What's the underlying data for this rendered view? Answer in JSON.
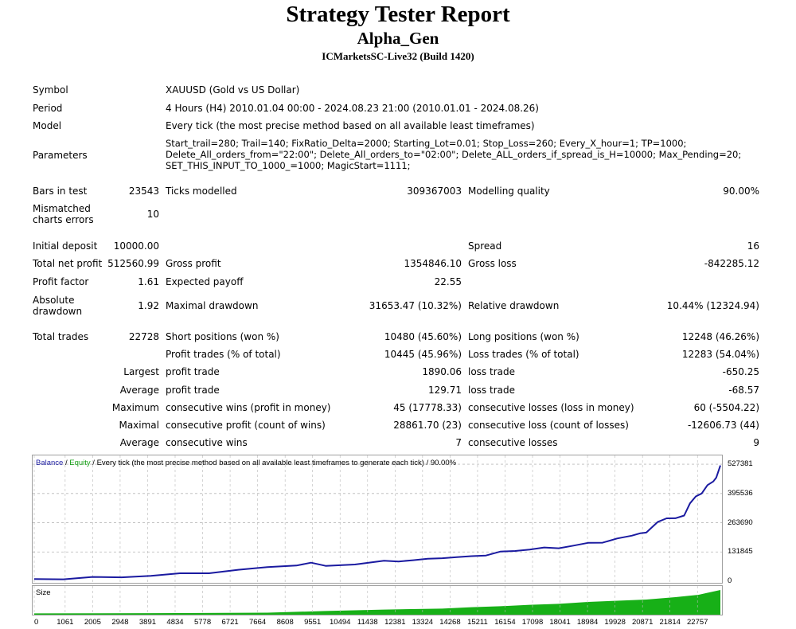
{
  "report": {
    "title": "Strategy Tester Report",
    "subtitle": "Alpha_Gen",
    "server": "ICMarketsSC-Live32 (Build 1420)"
  },
  "info": {
    "symbol_label": "Symbol",
    "symbol": "XAUUSD (Gold vs US Dollar)",
    "period_label": "Period",
    "period": "4 Hours (H4) 2010.01.04 00:00 - 2024.08.23 21:00 (2010.01.01 - 2024.08.26)",
    "model_label": "Model",
    "model": "Every tick (the most precise method based on all available least timeframes)",
    "parameters_label": "Parameters",
    "parameters_line1": "Start_trail=280; Trail=140; FixRatio_Delta=2000; Starting_Lot=0.01; Stop_Loss=260; Every_X_hour=1; TP=1000;",
    "parameters_line2": "Delete_All_orders_from=\"22:00\"; Delete_All_orders_to=\"02:00\"; Delete_ALL_orders_if_spread_is_H=10000; Max_Pending=20;",
    "parameters_line3": "SET_THIS_INPUT_TO_1000_=1000; MagicStart=1111;"
  },
  "stats": {
    "bars_label": "Bars in test",
    "bars": "23543",
    "ticks_label": "Ticks modelled",
    "ticks": "309367003",
    "quality_label": "Modelling quality",
    "quality": "90.00%",
    "mismatch_label_1": "Mismatched",
    "mismatch_label_2": "charts errors",
    "mismatch": "10",
    "deposit_label": "Initial deposit",
    "deposit": "10000.00",
    "spread_label": "Spread",
    "spread": "16",
    "net_label": "Total net profit",
    "net": "512560.99",
    "gross_profit_label": "Gross profit",
    "gross_profit": "1354846.10",
    "gross_loss_label": "Gross loss",
    "gross_loss": "-842285.12",
    "pf_label": "Profit factor",
    "pf": "1.61",
    "payoff_label": "Expected payoff",
    "payoff": "22.55",
    "abs_dd_label_1": "Absolute",
    "abs_dd_label_2": "drawdown",
    "abs_dd": "1.92",
    "max_dd_label": "Maximal drawdown",
    "max_dd": "31653.47 (10.32%)",
    "rel_dd_label": "Relative drawdown",
    "rel_dd": "10.44% (12324.94)",
    "trades_label": "Total trades",
    "trades": "22728",
    "short_label": "Short positions (won %)",
    "short": "10480 (45.60%)",
    "long_label": "Long positions (won %)",
    "long": "12248 (46.26%)",
    "profit_trades_label": "Profit trades (% of total)",
    "profit_trades": "10445 (45.96%)",
    "loss_trades_label": "Loss trades (% of total)",
    "loss_trades": "12283 (54.04%)",
    "largest_label": "Largest",
    "largest_pt_label": "profit trade",
    "largest_pt": "1890.06",
    "largest_lt_label": "loss trade",
    "largest_lt": "-650.25",
    "average_label": "Average",
    "average_pt_label": "profit trade",
    "average_pt": "129.71",
    "average_lt_label": "loss trade",
    "average_lt": "-68.57",
    "maximum_label": "Maximum",
    "max_cw_label": "consecutive wins (profit in money)",
    "max_cw": "45 (17778.33)",
    "max_cl_label": "consecutive losses (loss in money)",
    "max_cl": "60 (-5504.22)",
    "maximal_label": "Maximal",
    "mx_cp_label": "consecutive profit (count of wins)",
    "mx_cp": "28861.70 (23)",
    "mx_cl_label": "consecutive loss (count of losses)",
    "mx_cl": "-12606.73 (44)",
    "average2_label": "Average",
    "avg_cw_label": "consecutive wins",
    "avg_cw": "7",
    "avg_cl_label": "consecutive losses",
    "avg_cl": "9"
  },
  "chart_data": {
    "type": "line",
    "header_balance": "Balance",
    "header_sep1": " / ",
    "header_equity": "Equity",
    "header_rest": " / Every tick (the most precise method based on all available least timeframes to generate each tick) / 90.00%",
    "size_label": "Size",
    "colors": {
      "balance": "#1a1aa0",
      "equity": "#16a016",
      "size": "#17b017",
      "grid": "#b8b8b8"
    },
    "y_ticks": [
      527381,
      395536,
      263690,
      131845,
      0
    ],
    "ylim": [
      0,
      560000
    ],
    "x_ticks": [
      "0",
      "1061",
      "2005",
      "2948",
      "3891",
      "4834",
      "5778",
      "6721",
      "7664",
      "8608",
      "9551",
      "10494",
      "11438",
      "12381",
      "13324",
      "14268",
      "15211",
      "16154",
      "17098",
      "18041",
      "18984",
      "19928",
      "20871",
      "21814",
      "22757"
    ],
    "xlim": [
      0,
      23543
    ],
    "balance": {
      "x": [
        0,
        1000,
        2000,
        3000,
        4000,
        5000,
        6000,
        7000,
        8000,
        9000,
        9500,
        10000,
        11000,
        12000,
        12500,
        13000,
        13500,
        14000,
        14500,
        15000,
        15500,
        16000,
        16500,
        17000,
        17500,
        18000,
        18500,
        19000,
        19500,
        20000,
        20500,
        20800,
        21000,
        21400,
        21700,
        22000,
        22300,
        22500,
        22700,
        22900,
        23100,
        23300,
        23400,
        23543
      ],
      "y": [
        10000,
        12000,
        15000,
        20000,
        25000,
        32000,
        40000,
        50000,
        62000,
        75000,
        80000,
        70000,
        78000,
        88000,
        92000,
        95000,
        98000,
        108000,
        106000,
        112000,
        120000,
        130000,
        138000,
        145000,
        148000,
        152000,
        160000,
        170000,
        178000,
        190000,
        205000,
        220000,
        215000,
        270000,
        285000,
        280000,
        300000,
        350000,
        380000,
        400000,
        430000,
        450000,
        470000,
        522000
      ]
    },
    "size": {
      "x": [
        0,
        4000,
        8000,
        10000,
        12000,
        14000,
        15000,
        16000,
        17000,
        18000,
        19000,
        20000,
        21000,
        22000,
        22800,
        23543
      ],
      "y": [
        0.02,
        0.03,
        0.05,
        0.12,
        0.18,
        0.22,
        0.28,
        0.32,
        0.38,
        0.42,
        0.5,
        0.55,
        0.6,
        0.7,
        0.8,
        1.0
      ]
    }
  }
}
